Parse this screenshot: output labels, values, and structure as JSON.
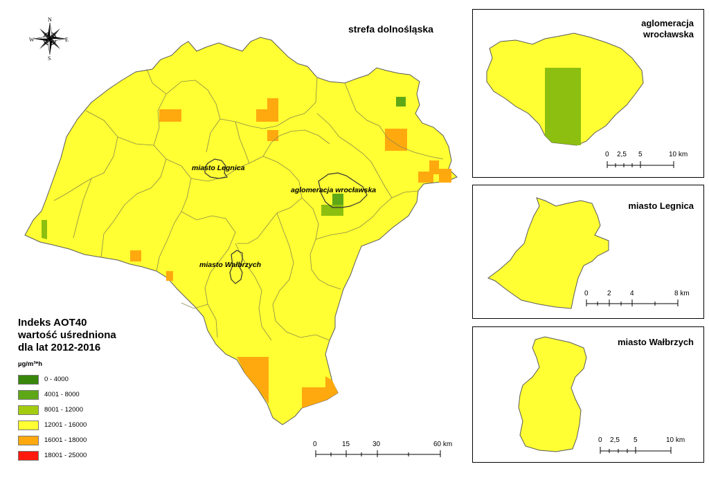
{
  "main_map": {
    "title": "strefa dolnośląska",
    "labels": {
      "legnica": "miasto Legnica",
      "wroclaw": "aglomeracja wrocławska",
      "walbrzych": "miasto Wałbrzych"
    },
    "compass": {
      "n": "N",
      "s": "S",
      "e": "E",
      "w": "W"
    },
    "scale": {
      "ticks": [
        "0",
        "15",
        "30",
        "60 km"
      ]
    }
  },
  "legend": {
    "title_line1": "Indeks AOT40",
    "title_line2": "wartość uśredniona",
    "title_line3": "dla lat 2012-2016",
    "unit": "µg/m³*h",
    "items": [
      {
        "label": "0 - 4000",
        "color": "#38870a"
      },
      {
        "label": "4001 - 8000",
        "color": "#5ea818"
      },
      {
        "label": "8001 - 12000",
        "color": "#a3cc0f"
      },
      {
        "label": "12001 - 16000",
        "color": "#ffff33"
      },
      {
        "label": "16001 - 18000",
        "color": "#ffa90f"
      },
      {
        "label": "18001 - 25000",
        "color": "#ff1a0d"
      }
    ]
  },
  "insets": {
    "wroclaw": {
      "title_line1": "aglomeracja",
      "title_line2": "wrocławska",
      "scale": [
        "0",
        "2,5",
        "5",
        "10 km"
      ]
    },
    "legnica": {
      "title": "miasto Legnica",
      "scale": [
        "0",
        "2",
        "4",
        "8 km"
      ]
    },
    "walbrzych": {
      "title": "miasto Wałbrzych",
      "scale": [
        "0",
        "2,5",
        "5",
        "10 km"
      ]
    }
  },
  "colors": {
    "yellow": "#ffff33",
    "orange": "#ffa90f",
    "green": "#5ea818",
    "light_green": "#8cbf10",
    "border": "#595959"
  }
}
